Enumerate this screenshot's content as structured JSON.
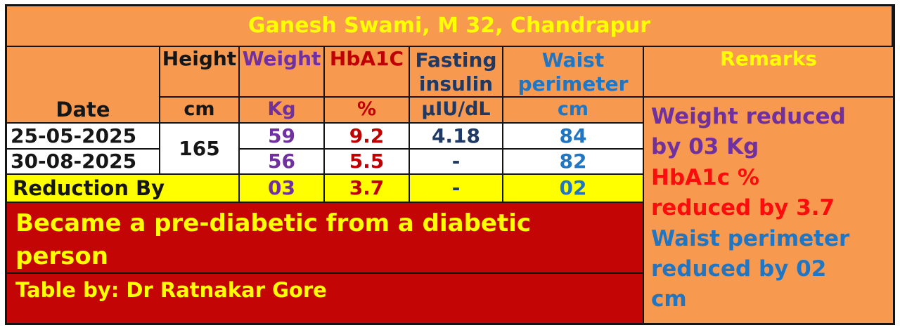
{
  "title": "Ganesh Swami, M 32, Chandrapur",
  "table": {
    "headers": {
      "date": "Date",
      "height": "Height",
      "weight": "Weight",
      "hba1c": "HbA1C",
      "fasting_insulin": "Fasting insulin",
      "waist": "Waist perimeter",
      "remarks": "Remarks"
    },
    "units": {
      "height": "cm",
      "weight": "Kg",
      "hba1c": "%",
      "fasting_insulin": "µIU/dL",
      "waist": "cm"
    },
    "rows": [
      {
        "date": "25-05-2025",
        "weight": "59",
        "hba1c": "9.2",
        "fasting_insulin": "4.18",
        "waist": "84"
      },
      {
        "date": "30-08-2025",
        "weight": "56",
        "hba1c": "5.5",
        "fasting_insulin": "-",
        "waist": "82"
      }
    ],
    "height_value": "165",
    "reduction": {
      "label": "Reduction By",
      "weight": "03",
      "hba1c": "3.7",
      "fasting_insulin": "-",
      "waist": "02"
    }
  },
  "banner": {
    "lines": [
      "Became a pre-diabetic from a diabetic",
      "person"
    ]
  },
  "credit": "Table by: Dr Ratnakar Gore",
  "remarks": {
    "items": [
      {
        "color": "#7030a0",
        "lines": [
          "Weight reduced",
          "by 03 Kg"
        ]
      },
      {
        "color": "#fb0d0d",
        "lines": [
          "HbA1c %",
          "reduced by 3.7"
        ]
      },
      {
        "color": "#2176c4",
        "lines": [
          "Waist perimeter",
          "reduced by 02",
          "cm"
        ]
      }
    ]
  },
  "colors": {
    "background_orange": "#f79a4f",
    "banner_red": "#c40505",
    "highlight_yellow": "#ffff00",
    "title_yellow": "#ffff00",
    "weight_purple": "#7030a0",
    "hba1c_dark_red": "#c00000",
    "insulin_navy": "#1f3864",
    "waist_blue": "#2176c4",
    "border_black": "#141414"
  }
}
